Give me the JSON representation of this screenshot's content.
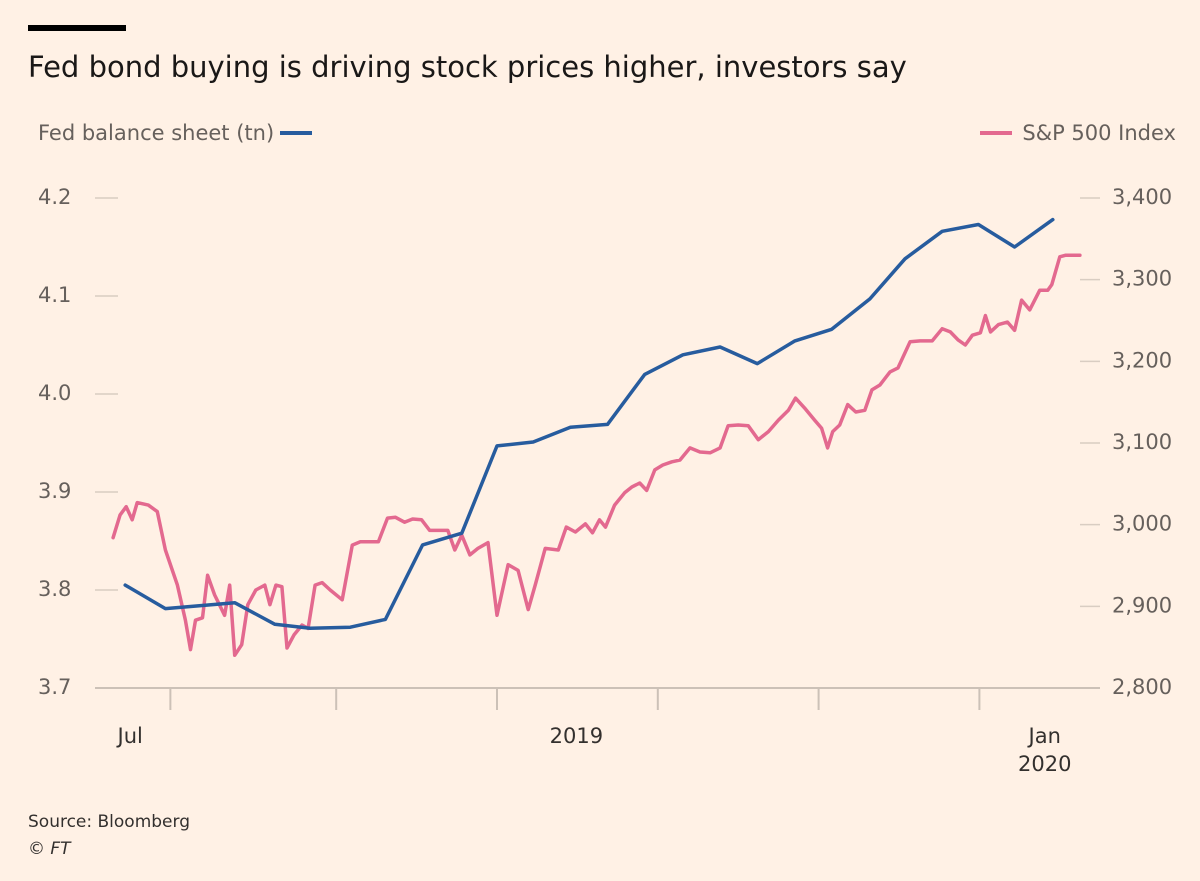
{
  "chart_data": {
    "type": "line",
    "title": "Fed bond buying is driving stock prices higher, investors say",
    "ylabel": "Fed balance sheet (tn)",
    "y2label": "S&P 500 Index",
    "source": "Source: Bloomberg",
    "credit": "© FT",
    "xlim": [
      0,
      100
    ],
    "xticks": [
      7.5,
      24,
      40,
      56,
      72,
      88
    ],
    "xlabels": [
      {
        "value": 3.5,
        "label": "Jul"
      },
      {
        "value": 47.9,
        "label": "2019"
      },
      {
        "value": 94.5,
        "label": "Jan 2020"
      }
    ],
    "ylim": [
      3.7,
      4.2
    ],
    "yticks": [
      3.7,
      3.8,
      3.9,
      {
        "value": 4,
        "label": "4.0"
      },
      4.1,
      4.2
    ],
    "y2lim": [
      2800,
      3400
    ],
    "y2ticks": [
      {
        "value": 2800,
        "label": "2,800"
      },
      {
        "value": 2900,
        "label": "2,900"
      },
      {
        "value": 3000,
        "label": "3,000"
      },
      {
        "value": 3100,
        "label": "3,100"
      },
      {
        "value": 3200,
        "label": "3,200"
      },
      {
        "value": 3300,
        "label": "3,300"
      },
      {
        "value": 3400,
        "label": "3,400"
      }
    ],
    "grid": false,
    "series": [
      {
        "name": "Fed balance sheet (tn)",
        "color": "#275c9e",
        "axis": "y",
        "x": [
          3.0,
          7.0,
          13.9,
          17.9,
          21.4,
          25.4,
          28.9,
          32.6,
          36.5,
          40.0,
          43.6,
          47.3,
          51.0,
          54.7,
          58.5,
          62.2,
          65.9,
          69.6,
          73.3,
          77.1,
          80.6,
          84.3,
          87.9,
          91.5,
          95.3
        ],
        "values": [
          3.805,
          3.781,
          3.787,
          3.765,
          3.761,
          3.762,
          3.77,
          3.846,
          3.858,
          3.947,
          3.951,
          3.966,
          3.969,
          4.02,
          4.04,
          4.048,
          4.031,
          4.054,
          4.066,
          4.097,
          4.138,
          4.166,
          4.173,
          4.15,
          4.178
        ]
      },
      {
        "name": "S&P 500 Index",
        "color": "#e3698f",
        "axis": "y2",
        "x": [
          1.8,
          2.5,
          3.1,
          3.7,
          4.2,
          5.3,
          6.2,
          7.0,
          8.2,
          9.0,
          9.5,
          10.0,
          10.7,
          11.2,
          11.9,
          12.9,
          13.4,
          13.9,
          14.6,
          15.2,
          16.0,
          16.9,
          17.4,
          18.0,
          18.6,
          19.1,
          19.8,
          20.6,
          21.2,
          21.9,
          22.6,
          23.4,
          24.6,
          25.6,
          26.4,
          28.2,
          29.1,
          29.9,
          30.8,
          31.6,
          32.5,
          33.3,
          35.1,
          35.8,
          36.5,
          37.3,
          38.1,
          39.1,
          40.0,
          41.1,
          42.1,
          43.1,
          43.8,
          44.8,
          46.1,
          46.9,
          47.8,
          48.8,
          49.5,
          50.2,
          50.8,
          51.7,
          52.7,
          53.4,
          54.2,
          54.9,
          55.7,
          56.5,
          57.4,
          58.2,
          59.2,
          60.2,
          61.2,
          62.2,
          63.0,
          64.0,
          65.0,
          66.0,
          67.0,
          68.0,
          69.0,
          69.7,
          70.6,
          71.6,
          72.3,
          72.9,
          73.4,
          74.1,
          74.9,
          75.7,
          76.6,
          77.3,
          78.1,
          79.1,
          79.9,
          81.1,
          82.1,
          83.3,
          84.3,
          85.1,
          85.9,
          86.6,
          87.3,
          88.1,
          88.6,
          89.1,
          89.9,
          90.8,
          91.5,
          92.2,
          93.0,
          94.0,
          94.8,
          95.2,
          96.0,
          96.6,
          98.0
        ],
        "values": [
          2984,
          3012,
          3022,
          3006,
          3027,
          3024,
          3016,
          2969,
          2926,
          2883,
          2847,
          2883,
          2886,
          2938,
          2914,
          2889,
          2926,
          2840,
          2853,
          2902,
          2920,
          2926,
          2902,
          2926,
          2924,
          2849,
          2865,
          2877,
          2873,
          2926,
          2929,
          2920,
          2908,
          2975,
          2979,
          2979,
          3008,
          3009,
          3003,
          3007,
          3006,
          2993,
          2993,
          2969,
          2987,
          2963,
          2971,
          2978,
          2889,
          2951,
          2944,
          2896,
          2926,
          2971,
          2969,
          2997,
          2991,
          3001,
          2990,
          3006,
          2997,
          3024,
          3039,
          3046,
          3051,
          3042,
          3067,
          3073,
          3077,
          3079,
          3094,
          3089,
          3088,
          3094,
          3121,
          3122,
          3121,
          3104,
          3114,
          3128,
          3140,
          3155,
          3143,
          3128,
          3118,
          3094,
          3114,
          3122,
          3147,
          3138,
          3140,
          3165,
          3171,
          3187,
          3192,
          3224,
          3225,
          3225,
          3240,
          3236,
          3226,
          3220,
          3232,
          3235,
          3256,
          3236,
          3245,
          3248,
          3238,
          3275,
          3263,
          3287,
          3287,
          3294,
          3328,
          3330,
          3330
        ]
      }
    ]
  }
}
